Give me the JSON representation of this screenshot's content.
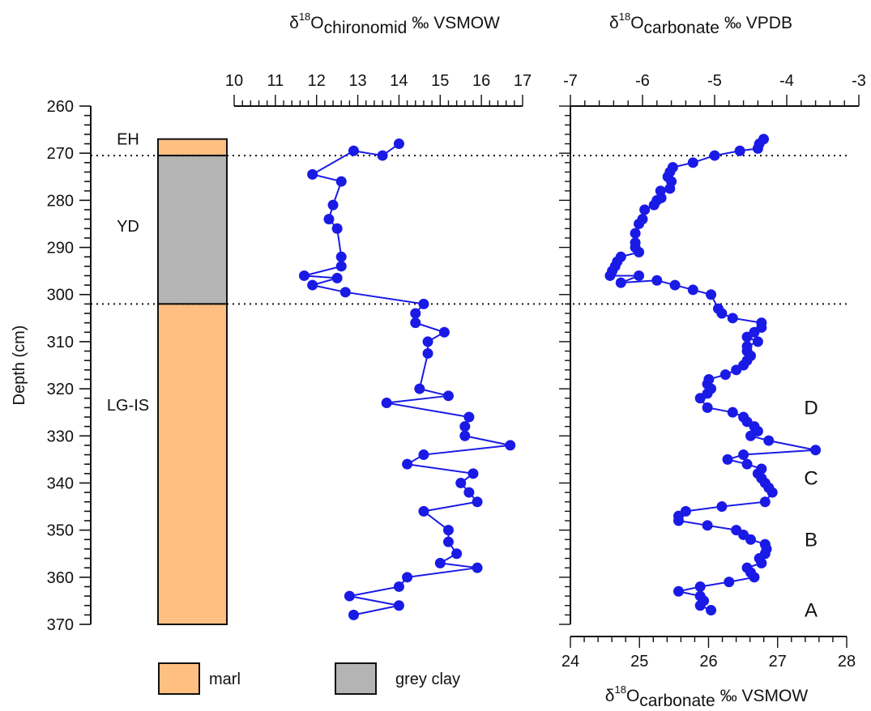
{
  "chart_data": [
    {
      "type": "stratigraphic-column",
      "depth_axis": {
        "label": "Depth (cm)",
        "range": [
          260,
          370
        ],
        "ticks": [
          260,
          270,
          280,
          290,
          300,
          310,
          320,
          330,
          340,
          350,
          360,
          370
        ],
        "inverted": true
      },
      "units": [
        {
          "name": "EH",
          "from": 267,
          "to": 270.5,
          "lithology": "marl"
        },
        {
          "name": "YD",
          "from": 270.5,
          "to": 302,
          "lithology": "grey clay"
        },
        {
          "name": "LG-IS",
          "from": 302,
          "to": 370,
          "lithology": "marl"
        }
      ],
      "boundaries": [
        270.5,
        302
      ],
      "legend": [
        {
          "label": "marl",
          "color": "#FFBF80"
        },
        {
          "label": "grey clay",
          "color": "#B4B4B4"
        }
      ]
    },
    {
      "type": "line",
      "title": "δ18Ochironomid ‰ VSMOW",
      "title_parts": {
        "base": "δ",
        "sup": "18",
        "main": "O",
        "sub": "chironomid",
        "unit": "‰ VSMOW"
      },
      "xlim": [
        10,
        17
      ],
      "x_ticks": [
        "10",
        "11",
        "12",
        "13",
        "14",
        "15",
        "16",
        "17"
      ],
      "y_axis": "depth",
      "series": [
        {
          "color": "#1A1AE6",
          "points": [
            [
              14.0,
              268
            ],
            [
              13.6,
              270.5
            ],
            [
              12.9,
              269.5
            ],
            [
              11.9,
              274.5
            ],
            [
              12.6,
              276
            ],
            [
              12.4,
              281
            ],
            [
              12.3,
              284
            ],
            [
              12.5,
              286
            ],
            [
              12.6,
              292
            ],
            [
              12.6,
              294
            ],
            [
              11.7,
              296
            ],
            [
              12.5,
              296.5
            ],
            [
              11.9,
              298
            ],
            [
              12.7,
              299.5
            ],
            [
              14.6,
              302
            ],
            [
              14.4,
              304
            ],
            [
              14.4,
              306
            ],
            [
              15.1,
              308
            ],
            [
              14.7,
              310
            ],
            [
              14.7,
              312.5
            ],
            [
              14.5,
              320
            ],
            [
              15.2,
              321.5
            ],
            [
              13.7,
              323
            ],
            [
              15.7,
              326
            ],
            [
              15.6,
              328
            ],
            [
              15.6,
              330
            ],
            [
              16.7,
              332
            ],
            [
              14.6,
              334
            ],
            [
              14.2,
              336
            ],
            [
              15.8,
              338
            ],
            [
              15.5,
              340
            ],
            [
              15.7,
              342
            ],
            [
              15.9,
              344
            ],
            [
              14.6,
              346
            ],
            [
              15.2,
              350
            ],
            [
              15.2,
              352.5
            ],
            [
              15.4,
              355
            ],
            [
              15.0,
              357
            ],
            [
              15.9,
              358
            ],
            [
              14.2,
              360
            ],
            [
              14.0,
              362
            ],
            [
              12.8,
              364
            ],
            [
              14.0,
              366
            ],
            [
              12.9,
              368
            ]
          ]
        }
      ]
    },
    {
      "type": "line",
      "title": "δ18Ocarbonate ‰ VPDB",
      "title_parts": {
        "base": "δ",
        "sup": "18",
        "main": "O",
        "sub": "carbonate",
        "unit": "‰ VPDB"
      },
      "xlim": [
        -7,
        -3
      ],
      "x_ticks": [
        "-7",
        "-6",
        "-5",
        "-4",
        "-3"
      ],
      "secondary_axis": {
        "label": "δ18Ocarbonate ‰ VSMOW",
        "label_parts": {
          "base": "δ",
          "sup": "18",
          "main": "O",
          "sub": "carbonate",
          "unit": "‰ VSMOW"
        },
        "xlim": [
          24,
          28
        ],
        "ticks": [
          "24",
          "25",
          "26",
          "27",
          "28"
        ]
      },
      "y_axis": "depth",
      "annotations": [
        {
          "text": "D",
          "depth": 324
        },
        {
          "text": "C",
          "depth": 339
        },
        {
          "text": "B",
          "depth": 352
        },
        {
          "text": "A",
          "depth": 367
        }
      ],
      "series": [
        {
          "color": "#1A1AE6",
          "points": [
            [
              -4.32,
              267
            ],
            [
              -4.38,
              268
            ],
            [
              -4.4,
              269
            ],
            [
              -4.65,
              269.5
            ],
            [
              -5.0,
              270.5
            ],
            [
              -5.3,
              272
            ],
            [
              -5.58,
              273
            ],
            [
              -5.62,
              274
            ],
            [
              -5.65,
              275
            ],
            [
              -5.6,
              276
            ],
            [
              -5.62,
              277.5
            ],
            [
              -5.75,
              278
            ],
            [
              -5.74,
              279.5
            ],
            [
              -5.8,
              280
            ],
            [
              -5.84,
              281
            ],
            [
              -5.97,
              282
            ],
            [
              -6.0,
              284
            ],
            [
              -6.05,
              285
            ],
            [
              -6.1,
              287
            ],
            [
              -6.1,
              289
            ],
            [
              -6.1,
              290
            ],
            [
              -6.05,
              291
            ],
            [
              -6.3,
              292
            ],
            [
              -6.35,
              293
            ],
            [
              -6.38,
              294
            ],
            [
              -6.42,
              295
            ],
            [
              -6.45,
              296
            ],
            [
              -6.05,
              296
            ],
            [
              -6.3,
              297.5
            ],
            [
              -5.8,
              297
            ],
            [
              -5.55,
              298
            ],
            [
              -5.3,
              299
            ],
            [
              -5.05,
              300
            ],
            [
              -4.95,
              303
            ],
            [
              -4.9,
              304
            ],
            [
              -4.75,
              305
            ],
            [
              -4.35,
              306
            ],
            [
              -4.35,
              307
            ],
            [
              -4.45,
              308
            ],
            [
              -4.55,
              309
            ],
            [
              -4.4,
              310
            ],
            [
              -4.55,
              311
            ],
            [
              -4.55,
              312
            ],
            [
              -4.5,
              313
            ],
            [
              -4.55,
              314
            ],
            [
              -4.6,
              315
            ],
            [
              -4.7,
              316
            ],
            [
              -4.85,
              317
            ],
            [
              -5.08,
              318
            ],
            [
              -5.1,
              319
            ],
            [
              -5.05,
              320
            ],
            [
              -5.1,
              321
            ],
            [
              -5.2,
              322
            ],
            [
              -5.1,
              324
            ],
            [
              -4.75,
              325
            ],
            [
              -4.6,
              326
            ],
            [
              -4.55,
              327
            ],
            [
              -4.45,
              328
            ],
            [
              -4.4,
              329
            ],
            [
              -4.5,
              330
            ],
            [
              -4.25,
              331
            ],
            [
              -3.6,
              333
            ],
            [
              -4.6,
              334
            ],
            [
              -4.82,
              335
            ],
            [
              -4.55,
              336
            ],
            [
              -4.35,
              337
            ],
            [
              -4.4,
              338
            ],
            [
              -4.35,
              339
            ],
            [
              -4.3,
              340
            ],
            [
              -4.25,
              341
            ],
            [
              -4.2,
              342
            ],
            [
              -4.3,
              344
            ],
            [
              -4.9,
              345
            ],
            [
              -5.4,
              346
            ],
            [
              -5.5,
              347
            ],
            [
              -5.5,
              348
            ],
            [
              -5.1,
              349
            ],
            [
              -4.7,
              350
            ],
            [
              -4.6,
              351
            ],
            [
              -4.5,
              352
            ],
            [
              -4.3,
              353
            ],
            [
              -4.28,
              354
            ],
            [
              -4.3,
              355
            ],
            [
              -4.38,
              356
            ],
            [
              -4.35,
              357
            ],
            [
              -4.55,
              358
            ],
            [
              -4.5,
              359
            ],
            [
              -4.45,
              360
            ],
            [
              -4.8,
              361
            ],
            [
              -5.2,
              362
            ],
            [
              -5.5,
              363
            ],
            [
              -5.2,
              364
            ],
            [
              -5.15,
              365
            ],
            [
              -5.2,
              366
            ],
            [
              -5.05,
              367
            ]
          ]
        }
      ]
    }
  ]
}
